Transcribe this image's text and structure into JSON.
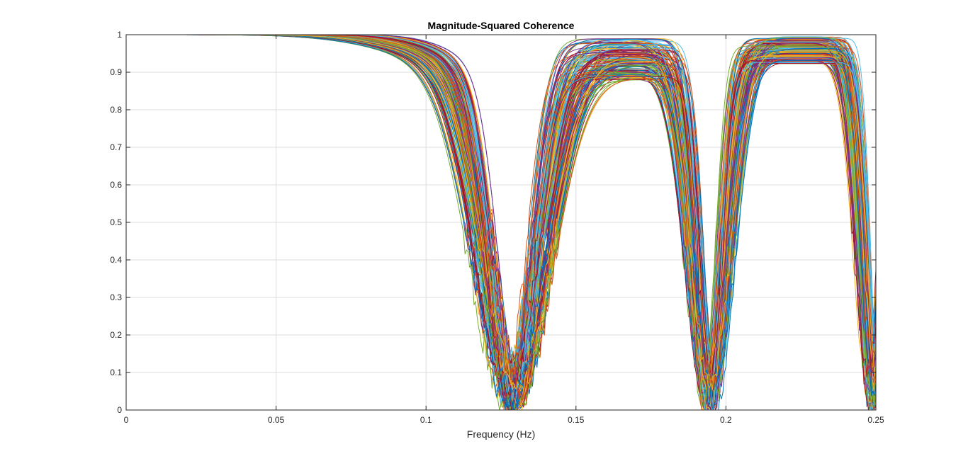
{
  "chart_data": {
    "type": "line",
    "title": "Magnitude-Squared Coherence",
    "xlabel": "Frequency (Hz)",
    "ylabel": "",
    "xlim": [
      0,
      0.25
    ],
    "ylim": [
      0,
      1
    ],
    "x_ticks": [
      "0",
      "0.05",
      "0.1",
      "0.15",
      "0.2",
      "0.25"
    ],
    "y_ticks": [
      "0",
      "0.1",
      "0.2",
      "0.3",
      "0.4",
      "0.5",
      "0.6",
      "0.7",
      "0.8",
      "0.9",
      "1"
    ],
    "grid": true,
    "legend": "none",
    "series_count_shown": 150,
    "series_model": {
      "description_of_shape": "coherence ~1 at low frequency, notch near 0.129 Hz, plateau ~0.88-0.99, notch near 0.195 Hz, plateau ~0.92-0.99, drop toward 0.25 Hz",
      "notch1_center_range": [
        0.1265,
        0.1315
      ],
      "notch2_center_range": [
        0.1925,
        0.1965
      ],
      "notch3_center_range": [
        0.2475,
        0.2515
      ],
      "plateau1_peak_range": [
        0.88,
        0.99
      ],
      "plateau2_peak_range": [
        0.92,
        0.995
      ],
      "sample_x": [
        0,
        0.01,
        0.02,
        0.03,
        0.04,
        0.05,
        0.06,
        0.07,
        0.08,
        0.09,
        0.1,
        0.11,
        0.12,
        0.125,
        0.129,
        0.133,
        0.14,
        0.15,
        0.165,
        0.18,
        0.19,
        0.195,
        0.2,
        0.21,
        0.225,
        0.24,
        0.245,
        0.25
      ],
      "representative_series": [
        {
          "y": [
            1,
            1,
            1,
            1,
            1,
            1,
            1,
            1,
            0.998,
            0.99,
            0.97,
            0.9,
            0.62,
            0.3,
            0.02,
            0.3,
            0.78,
            0.92,
            0.96,
            0.93,
            0.78,
            0.02,
            0.72,
            0.94,
            0.97,
            0.9,
            0.55,
            0.02
          ]
        },
        {
          "y": [
            1,
            1,
            1,
            1,
            1,
            1,
            1,
            1,
            0.997,
            0.985,
            0.95,
            0.85,
            0.5,
            0.2,
            0.04,
            0.4,
            0.85,
            0.96,
            0.98,
            0.96,
            0.85,
            0.05,
            0.8,
            0.97,
            0.99,
            0.95,
            0.7,
            0.03
          ]
        },
        {
          "y": [
            1,
            1,
            1,
            1,
            1,
            1,
            1,
            1,
            0.995,
            0.975,
            0.92,
            0.76,
            0.35,
            0.12,
            0.05,
            0.2,
            0.62,
            0.8,
            0.88,
            0.82,
            0.6,
            0.03,
            0.55,
            0.86,
            0.93,
            0.82,
            0.4,
            0.04
          ]
        }
      ]
    },
    "colors": [
      "#0072BD",
      "#D95319",
      "#EDB120",
      "#7E2F8E",
      "#77AC30",
      "#4DBEEE",
      "#A2142F"
    ]
  }
}
